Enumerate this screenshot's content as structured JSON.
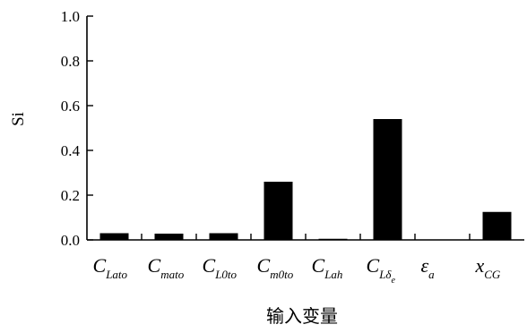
{
  "chart_data": {
    "type": "bar",
    "ylabel": "Si",
    "xlabel": "输入变量",
    "ylim": [
      0,
      1.0
    ],
    "yticks": [
      "0.0",
      "0.2",
      "0.4",
      "0.6",
      "0.8",
      "1.0"
    ],
    "categories": [
      {
        "main": "C",
        "sub": "Lato"
      },
      {
        "main": "C",
        "sub": "mato"
      },
      {
        "main": "C",
        "sub": "L0to"
      },
      {
        "main": "C",
        "sub": "m0to"
      },
      {
        "main": "C",
        "sub": "Lah"
      },
      {
        "main": "C",
        "sub": "Lδ",
        "subsub": "e"
      },
      {
        "main": "ε",
        "sub": "a"
      },
      {
        "main": "x",
        "sub": "CG"
      }
    ],
    "values": [
      0.03,
      0.028,
      0.03,
      0.26,
      0.005,
      0.54,
      0.0,
      0.125
    ],
    "colors": {
      "bar": "#000000",
      "axis": "#000000"
    }
  }
}
